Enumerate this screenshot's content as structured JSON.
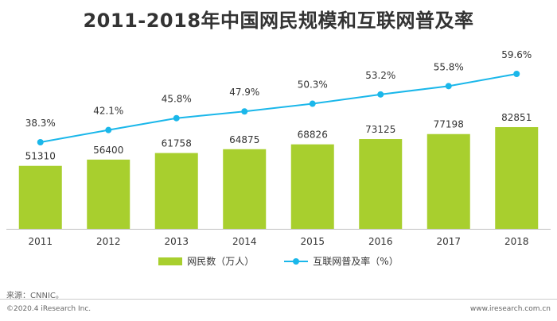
{
  "chart_data": {
    "type": "bar+line",
    "title": "2011-2018年中国网民规模和互联网普及率",
    "categories": [
      "2011",
      "2012",
      "2013",
      "2014",
      "2015",
      "2016",
      "2017",
      "2018"
    ],
    "series": [
      {
        "name": "网民数（万人）",
        "type": "bar",
        "values": [
          51310,
          56400,
          61758,
          64875,
          68826,
          73125,
          77198,
          82851
        ],
        "labels": [
          "51310",
          "56400",
          "61758",
          "64875",
          "68826",
          "73125",
          "77198",
          "82851"
        ]
      },
      {
        "name": "互联网普及率（%）",
        "type": "line",
        "values": [
          38.3,
          42.1,
          45.8,
          47.9,
          50.3,
          53.2,
          55.8,
          59.6
        ],
        "labels": [
          "38.3%",
          "42.1%",
          "45.8%",
          "47.9%",
          "50.3%",
          "53.2%",
          "55.8%",
          "59.6%"
        ]
      }
    ],
    "legend_position": "bottom",
    "grid": false
  },
  "colors": {
    "bar": "#a8cf2e",
    "line": "#1ab7ea",
    "axis": "#bfbfbf",
    "text": "#333333"
  },
  "source": "来源：CNNIC。",
  "footer": {
    "copyright": "©2020.4 iResearch Inc.",
    "website": "www.iresearch.com.cn"
  }
}
